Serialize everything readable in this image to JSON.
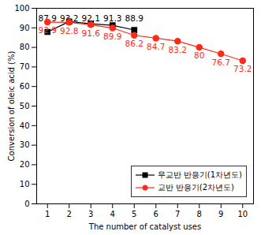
{
  "chart_data": {
    "type": "line",
    "x_label": "The number of catalyst uses",
    "y_label": "Conversion of oleic acid (%)",
    "xlim": [
      0.5,
      10.5
    ],
    "xticks": [
      1,
      2,
      3,
      4,
      5,
      6,
      7,
      8,
      9,
      10
    ],
    "ylim": [
      0,
      100
    ],
    "yticks": [
      0,
      10,
      20,
      30,
      40,
      50,
      60,
      70,
      80,
      90,
      100
    ],
    "grid": false,
    "data_labels": true,
    "legend": "lower right",
    "series": [
      {
        "name": "무교반 반응기(1차년도)",
        "color": "#000000",
        "marker": "square",
        "x": [
          1,
          2,
          3,
          4,
          5
        ],
        "values": [
          87.9,
          93.2,
          92.1,
          91.3,
          88.9
        ]
      },
      {
        "name": "교반 반응기(2차년도)",
        "color": "#ff2a1a",
        "marker": "circle",
        "x": [
          1,
          2,
          3,
          4,
          5,
          6,
          7,
          8,
          9,
          10
        ],
        "values": [
          92.9,
          92.8,
          91.6,
          89.9,
          86.2,
          84.7,
          83.2,
          80,
          76.7,
          73.2
        ]
      }
    ]
  }
}
